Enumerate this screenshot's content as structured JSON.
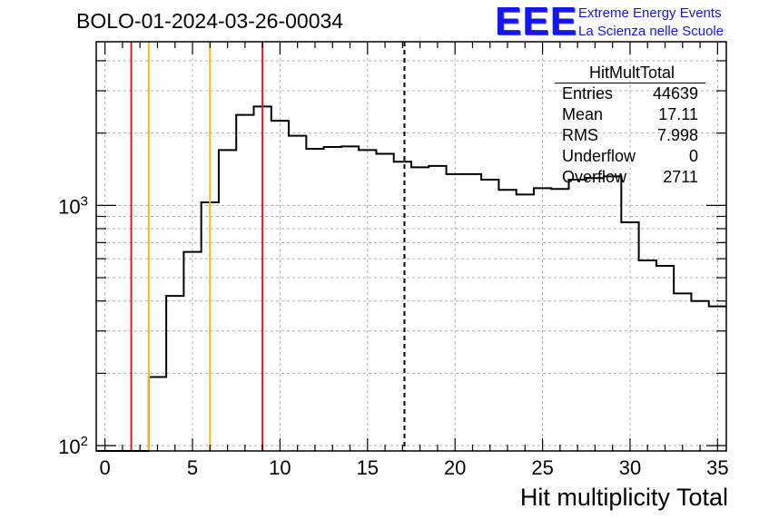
{
  "run_title": "BOLO-01-2024-03-26-00034",
  "logo": {
    "mark": "EEE",
    "line1": "Extreme Energy Events",
    "line2": "La Scienza nelle Scuole",
    "color": "#1515ee"
  },
  "stats_box": {
    "title": "HitMultTotal",
    "rows": [
      {
        "label": "Entries",
        "value": "44639"
      },
      {
        "label": "Mean",
        "value": "17.11"
      },
      {
        "label": "RMS",
        "value": "7.998"
      },
      {
        "label": "Underflow",
        "value": "0"
      },
      {
        "label": "Overflow",
        "value": "2711"
      }
    ]
  },
  "chart_data": {
    "type": "histogram",
    "title": "BOLO-01-2024-03-26-00034",
    "xlabel": "Hit multiplicity Total",
    "ylabel": "",
    "xlim": [
      -0.5,
      35.5
    ],
    "ylim": [
      95,
      4800
    ],
    "yscale": "log",
    "grid": true,
    "x_ticks": [
      0,
      5,
      10,
      15,
      20,
      25,
      30,
      35
    ],
    "y_ticks": [
      {
        "value": 100,
        "base": "10",
        "exp": "2"
      },
      {
        "value": 1000,
        "base": "10",
        "exp": "3"
      }
    ],
    "bin_edges": [
      -0.5,
      0.5,
      1.5,
      2.5,
      3.5,
      4.5,
      5.5,
      6.5,
      7.5,
      8.5,
      9.5,
      10.5,
      11.5,
      12.5,
      13.5,
      14.5,
      15.5,
      16.5,
      17.5,
      18.5,
      19.5,
      20.5,
      21.5,
      22.5,
      23.5,
      24.5,
      25.5,
      26.5,
      27.5,
      28.5,
      29.5,
      30.5,
      31.5,
      32.5,
      33.5,
      34.5,
      35.5
    ],
    "counts": [
      0,
      0,
      0,
      193,
      420,
      640,
      1030,
      1700,
      2380,
      2580,
      2250,
      1950,
      1720,
      1750,
      1760,
      1700,
      1640,
      1520,
      1440,
      1460,
      1350,
      1350,
      1280,
      1160,
      1110,
      1180,
      1170,
      1280,
      1300,
      1320,
      850,
      590,
      560,
      430,
      400,
      380
    ],
    "vertical_lines": [
      {
        "x": 1.5,
        "color": "#e8141e",
        "style": "solid"
      },
      {
        "x": 2.5,
        "color": "#f2c010",
        "style": "solid"
      },
      {
        "x": 6.0,
        "color": "#f2c010",
        "style": "solid"
      },
      {
        "x": 9.0,
        "color": "#e8141e",
        "style": "solid"
      },
      {
        "x": 17.11,
        "color": "#000000",
        "style": "dashed"
      }
    ]
  }
}
